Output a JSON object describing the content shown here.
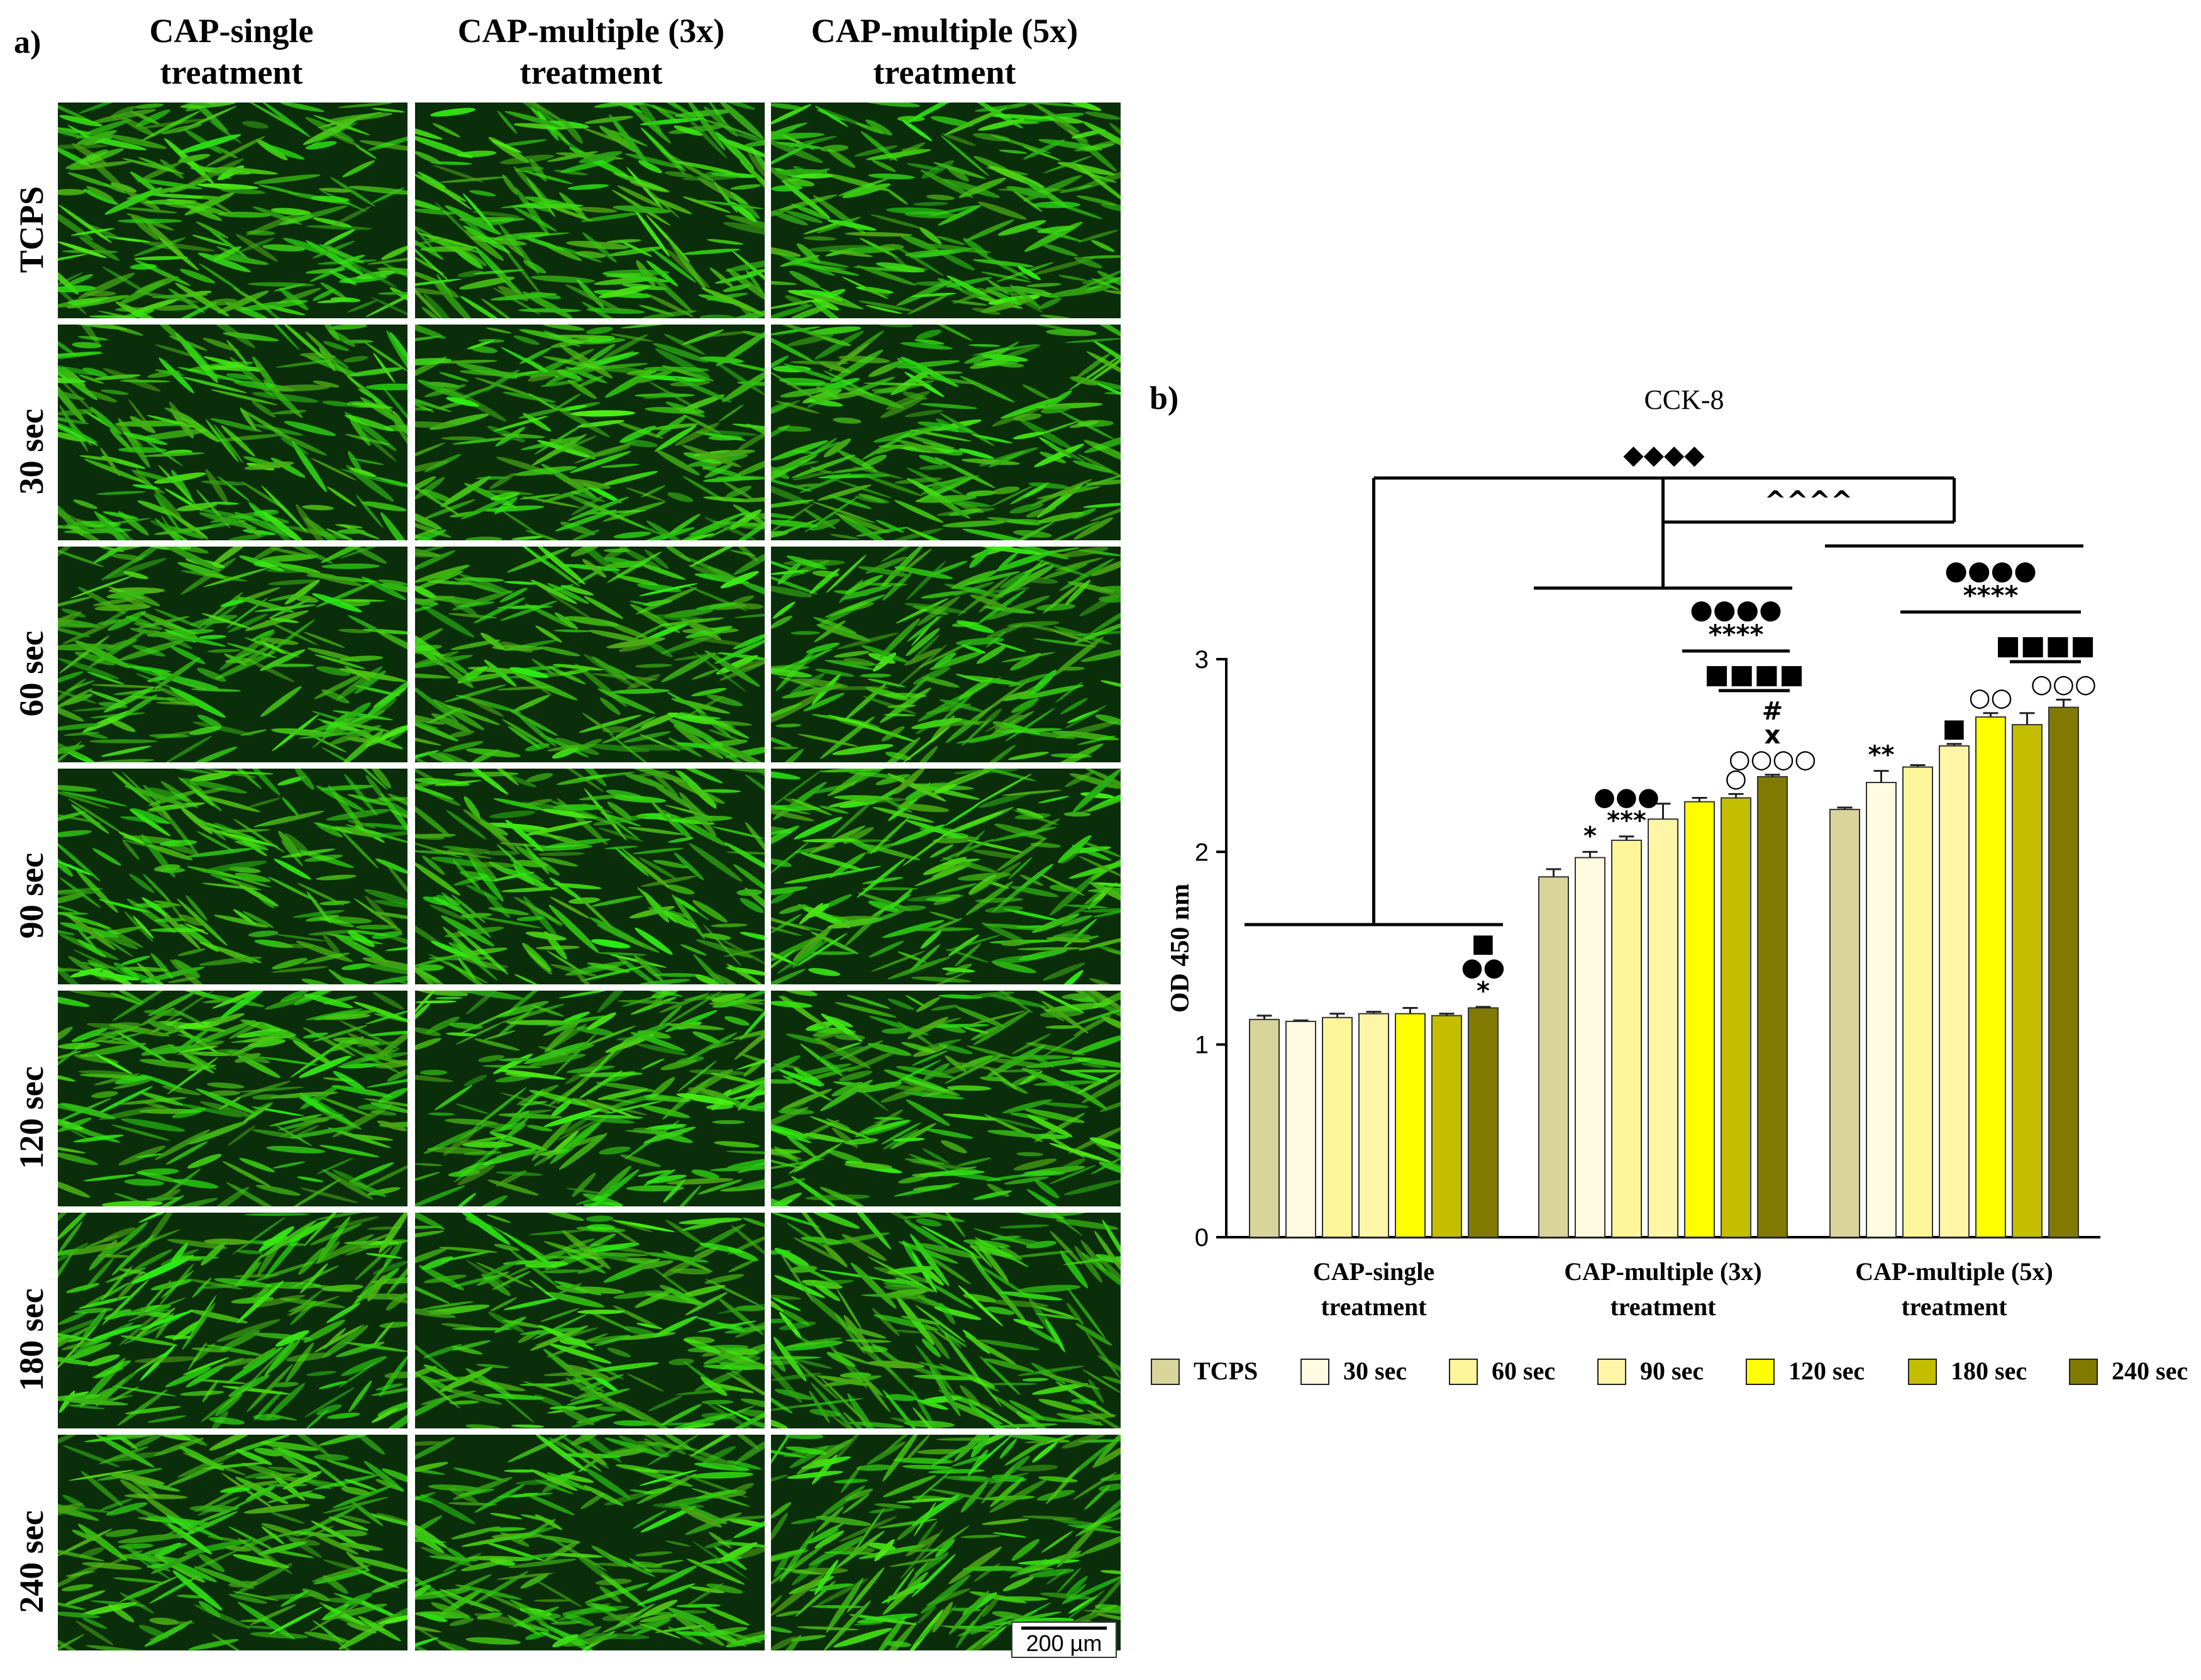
{
  "panel_a": {
    "label": "a)",
    "columns": [
      "CAP-single treatment",
      "CAP-multiple (3x) treatment",
      "CAP-multiple (5x) treatment"
    ],
    "column_lines": [
      [
        "CAP-single",
        "treatment"
      ],
      [
        "CAP-multiple (3x)",
        "treatment"
      ],
      [
        "CAP-multiple (5x)",
        "treatment"
      ]
    ],
    "rows": [
      "TCPS",
      "30 sec",
      "60 sec",
      "90 sec",
      "120 sec",
      "180 sec",
      "240 sec"
    ],
    "scale_bar": "200 µm",
    "image_colors": {
      "background": "#0b2e0a",
      "cells": "#3fcf1c"
    }
  },
  "panel_b": {
    "label": "b)",
    "legend_position": "bottom"
  },
  "chart_data": {
    "type": "bar",
    "title": "CCK-8",
    "ylabel": "OD 450 nm",
    "xlabel": "",
    "ylim": [
      0,
      3
    ],
    "yticks": [
      0,
      1,
      2,
      3
    ],
    "categories": [
      "CAP-single treatment",
      "CAP-multiple (3x) treatment",
      "CAP-multiple (5x) treatment"
    ],
    "category_lines": [
      [
        "CAP-single",
        "treatment"
      ],
      [
        "CAP-multiple (3x)",
        "treatment"
      ],
      [
        "CAP-multiple (5x)",
        "treatment"
      ]
    ],
    "grid": false,
    "series": [
      {
        "name": "TCPS",
        "color": "#d8d49a",
        "values": [
          1.13,
          1.87,
          2.22
        ],
        "errors": [
          0.02,
          0.04,
          0.01
        ]
      },
      {
        "name": "30 sec",
        "color": "#fffbe0",
        "values": [
          1.12,
          1.97,
          2.36
        ],
        "errors": [
          0.005,
          0.03,
          0.06
        ]
      },
      {
        "name": "60 sec",
        "color": "#fff59a",
        "values": [
          1.14,
          2.06,
          2.44
        ],
        "errors": [
          0.02,
          0.02,
          0.01
        ]
      },
      {
        "name": "90 sec",
        "color": "#fff5a6",
        "values": [
          1.16,
          2.17,
          2.55
        ],
        "errors": [
          0.01,
          0.08,
          0.01
        ]
      },
      {
        "name": "120 sec",
        "color": "#ffff00",
        "values": [
          1.16,
          2.26,
          2.7
        ],
        "errors": [
          0.03,
          0.02,
          0.02
        ]
      },
      {
        "name": "180 sec",
        "color": "#c4be00",
        "values": [
          1.15,
          2.28,
          2.66
        ],
        "errors": [
          0.01,
          0.02,
          0.06
        ]
      },
      {
        "name": "240 sec",
        "color": "#827a00",
        "values": [
          1.19,
          2.39,
          2.75
        ],
        "errors": [
          0.005,
          0.01,
          0.04
        ]
      }
    ],
    "annotations": [
      {
        "group": 0,
        "series": 6,
        "stack": [
          "*",
          "●●",
          "■"
        ]
      },
      {
        "group": 1,
        "series": 1,
        "stack": [
          "*"
        ]
      },
      {
        "group": 1,
        "series": 2,
        "stack": [
          "***",
          "●●●"
        ]
      },
      {
        "group": 1,
        "series": 5,
        "stack": [
          "○"
        ]
      },
      {
        "group": 1,
        "series": 6,
        "stack": [
          "○○○○",
          "x",
          "#"
        ]
      },
      {
        "group": 2,
        "series": 1,
        "stack": [
          "**"
        ]
      },
      {
        "group": 2,
        "series": 3,
        "stack": [
          "■"
        ]
      },
      {
        "group": 2,
        "series": 4,
        "stack": [
          "○○"
        ]
      },
      {
        "group": 2,
        "series": 6,
        "stack": [
          "○○○"
        ]
      }
    ],
    "brackets": [
      {
        "symbol": "◆◆◆◆",
        "between": [
          "CAP-single treatment",
          "CAP-multiple (5x) treatment"
        ]
      },
      {
        "symbol": "^^^^",
        "between": [
          "CAP-multiple (3x) treatment",
          "CAP-multiple (5x) treatment"
        ]
      },
      {
        "symbol": "****",
        "symbol2": "●●●●",
        "group": "CAP-multiple (3x) treatment",
        "from": "120 sec",
        "to": "240 sec"
      },
      {
        "symbol": "■■■■",
        "group": "CAP-multiple (3x) treatment",
        "from": "180 sec",
        "to": "240 sec"
      },
      {
        "symbol": "****",
        "symbol2": "●●●●",
        "group": "CAP-multiple (5x) treatment",
        "from": "60 sec",
        "to": "240 sec"
      },
      {
        "symbol": "■■■■",
        "group": "CAP-multiple (5x) treatment",
        "from": "180 sec",
        "to": "240 sec"
      }
    ]
  }
}
